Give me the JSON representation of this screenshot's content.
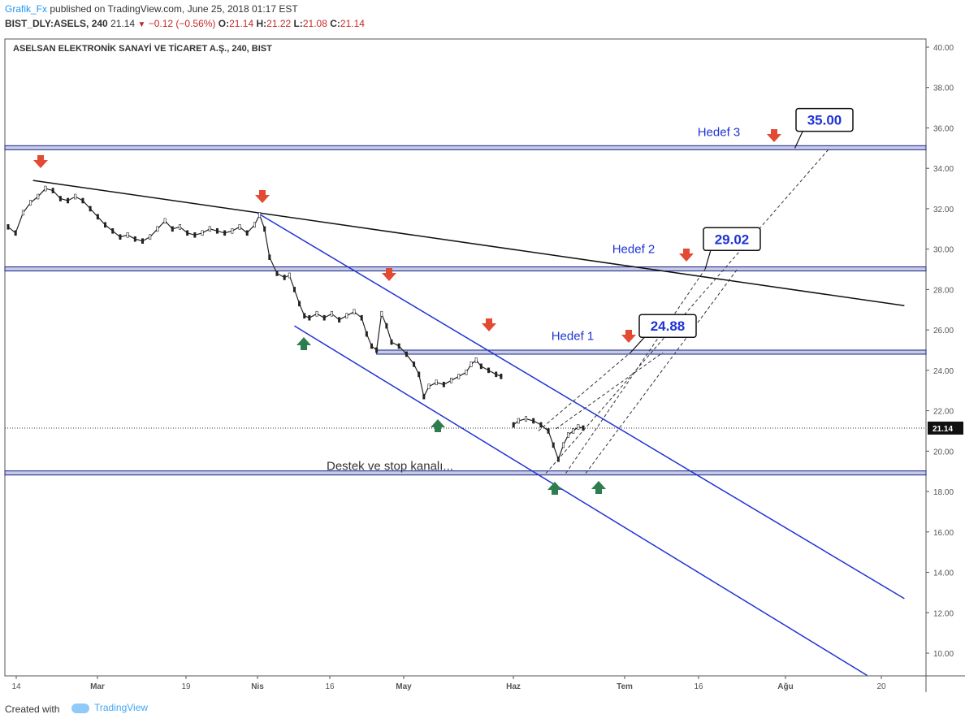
{
  "header": {
    "author": "Grafik_Fx",
    "published_text": "published on TradingView.com, June 25, 2018 01:17 EST",
    "symbol": "BIST_DLY:ASELS, 240",
    "last_price": "21.14",
    "change": "−0.12 (−0.56%)",
    "open_label": "O:",
    "open": "21.14",
    "high_label": "H:",
    "high": "21.22",
    "low_label": "L:",
    "low": "21.08",
    "close_label": "C:",
    "close": "21.14"
  },
  "footer": {
    "created_with": "Created with",
    "brand": "TradingView"
  },
  "chart_data": {
    "type": "line",
    "title": "ASELSAN ELEKTRONİK SANAYİ VE TİCARET A.Ş., 240, BIST",
    "ylim": [
      9,
      40.5
    ],
    "y_ticks": [
      "40.00",
      "38.00",
      "36.00",
      "34.00",
      "32.00",
      "30.00",
      "28.00",
      "26.00",
      "24.00",
      "22.00",
      "20.00",
      "18.00",
      "16.00",
      "14.00",
      "12.00",
      "10.00"
    ],
    "y_tick_values": [
      40,
      38,
      36,
      34,
      32,
      30,
      28,
      26,
      24,
      22,
      20,
      18,
      16,
      14,
      12,
      10
    ],
    "x_ticks": [
      {
        "label": "14",
        "bold": false
      },
      {
        "label": "Mar",
        "bold": true
      },
      {
        "label": "19",
        "bold": false
      },
      {
        "label": "Nis",
        "bold": true
      },
      {
        "label": "16",
        "bold": false
      },
      {
        "label": "May",
        "bold": true
      },
      {
        "label": "Haz",
        "bold": true
      },
      {
        "label": "Tem",
        "bold": true
      },
      {
        "label": "16",
        "bold": false
      },
      {
        "label": "Ağu",
        "bold": true
      },
      {
        "label": "20",
        "bold": false
      }
    ],
    "last_price_label": "21.14",
    "last_price": 21.14,
    "price_series": [
      [
        0,
        31.1
      ],
      [
        3,
        30.8
      ],
      [
        6,
        31.8
      ],
      [
        9,
        32.3
      ],
      [
        12,
        32.6
      ],
      [
        15,
        33.0
      ],
      [
        18,
        32.9
      ],
      [
        21,
        32.5
      ],
      [
        24,
        32.4
      ],
      [
        27,
        32.6
      ],
      [
        30,
        32.4
      ],
      [
        33,
        32.0
      ],
      [
        36,
        31.6
      ],
      [
        39,
        31.2
      ],
      [
        42,
        30.9
      ],
      [
        45,
        30.6
      ],
      [
        48,
        30.7
      ],
      [
        51,
        30.5
      ],
      [
        54,
        30.4
      ],
      [
        57,
        30.6
      ],
      [
        60,
        31.0
      ],
      [
        63,
        31.4
      ],
      [
        66,
        31.0
      ],
      [
        69,
        31.1
      ],
      [
        72,
        30.8
      ],
      [
        75,
        30.7
      ],
      [
        78,
        30.8
      ],
      [
        81,
        31.0
      ],
      [
        84,
        30.9
      ],
      [
        87,
        30.8
      ],
      [
        90,
        30.9
      ],
      [
        93,
        31.1
      ],
      [
        96,
        30.8
      ],
      [
        99,
        31.2
      ],
      [
        101,
        31.7
      ],
      [
        103,
        31.0
      ],
      [
        105,
        29.6
      ],
      [
        108,
        28.8
      ],
      [
        111,
        28.6
      ],
      [
        113,
        28.7
      ],
      [
        115,
        28.0
      ],
      [
        117,
        27.3
      ],
      [
        119,
        26.7
      ],
      [
        121,
        26.6
      ],
      [
        124,
        26.8
      ],
      [
        127,
        26.6
      ],
      [
        130,
        26.8
      ],
      [
        133,
        26.5
      ],
      [
        136,
        26.7
      ],
      [
        139,
        26.9
      ],
      [
        142,
        26.6
      ],
      [
        144,
        25.8
      ],
      [
        146,
        25.2
      ],
      [
        148,
        25.0
      ],
      [
        150,
        26.8
      ],
      [
        152,
        26.2
      ],
      [
        154,
        25.4
      ],
      [
        157,
        25.2
      ],
      [
        160,
        24.8
      ],
      [
        163,
        24.3
      ],
      [
        165,
        23.8
      ],
      [
        167,
        22.7
      ],
      [
        169,
        23.2
      ],
      [
        172,
        23.4
      ],
      [
        175,
        23.3
      ],
      [
        178,
        23.5
      ],
      [
        181,
        23.7
      ],
      [
        184,
        23.9
      ],
      [
        186,
        24.3
      ],
      [
        188,
        24.5
      ],
      [
        190,
        24.2
      ],
      [
        193,
        24.0
      ],
      [
        196,
        23.8
      ],
      [
        198,
        23.7
      ],
      [
        203,
        21.3
      ],
      [
        205,
        21.5
      ],
      [
        208,
        21.6
      ],
      [
        211,
        21.5
      ],
      [
        214,
        21.3
      ],
      [
        217,
        21.0
      ],
      [
        219,
        20.3
      ],
      [
        221,
        19.6
      ],
      [
        223,
        20.3
      ],
      [
        225,
        20.8
      ],
      [
        227,
        21.0
      ],
      [
        229,
        21.2
      ],
      [
        231,
        21.14
      ]
    ],
    "series_x_range": [
      0,
      231
    ],
    "annotation_lines": {
      "resistance_trend": {
        "x": [
          10,
          360
        ],
        "y": [
          33.4,
          27.2
        ]
      },
      "channel_upper": {
        "x": [
          100,
          360
        ],
        "y": [
          31.8,
          12.7
        ]
      },
      "channel_lower": {
        "x": [
          115,
          345
        ],
        "y": [
          26.2,
          8.9
        ]
      }
    },
    "horizontal_bands": [
      {
        "level": 35.0,
        "x_from": -2,
        "x_to": 360
      },
      {
        "level": 29.0,
        "x_from": -2,
        "x_to": 360
      },
      {
        "level": 24.88,
        "x_from": 148,
        "x_to": 360
      },
      {
        "level": 18.9,
        "x_from": -2,
        "x_to": 360
      }
    ],
    "targets": [
      {
        "label": "Hedef 1",
        "value": "24.88"
      },
      {
        "label": "Hedef 2",
        "value": "29.02"
      },
      {
        "label": "Hedef 3",
        "value": "35.00"
      }
    ],
    "support_note": "Destek ve stop kanalı..."
  }
}
